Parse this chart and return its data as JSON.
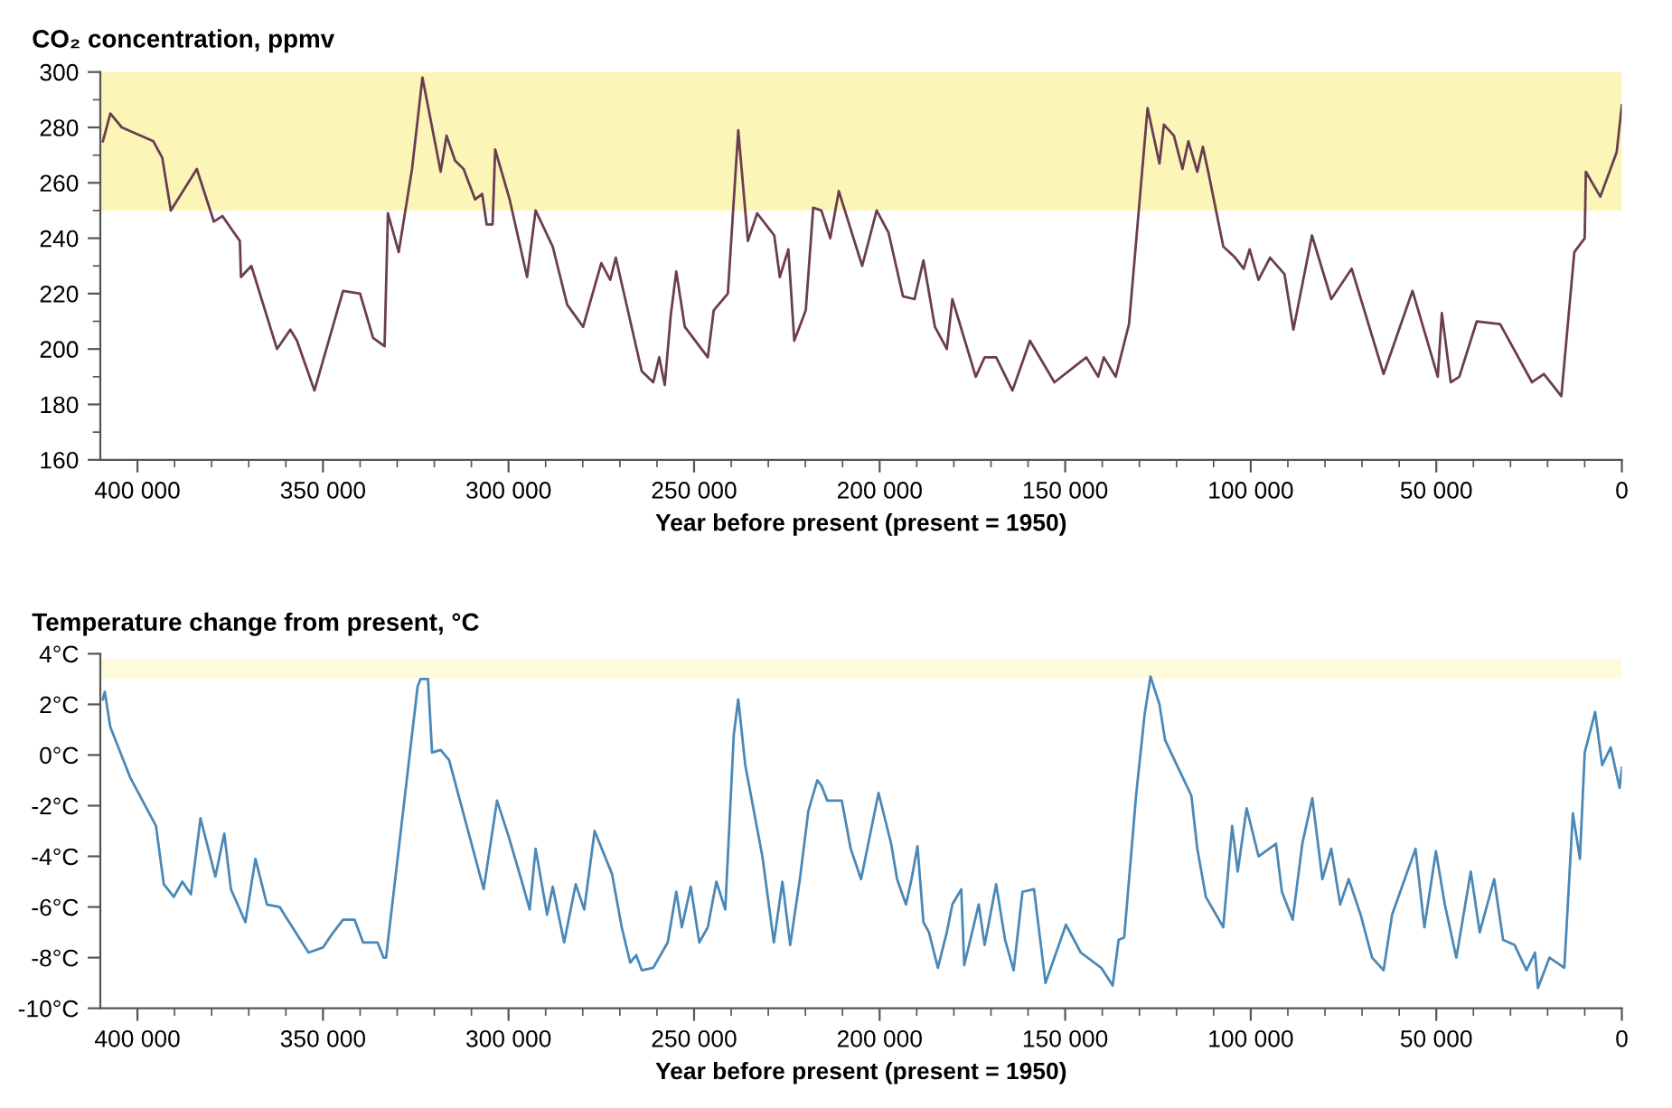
{
  "chart_data": [
    {
      "type": "line",
      "title": "CO₂ concentration, ppmv",
      "xlabel": "Year before present (present = 1950)",
      "xlim": [
        410000,
        0
      ],
      "ylim": [
        160,
        300
      ],
      "xticks": [
        {
          "value": 400000,
          "label": "400 000"
        },
        {
          "value": 390000,
          "label": null
        },
        {
          "value": 380000,
          "label": null
        },
        {
          "value": 370000,
          "label": null
        },
        {
          "value": 360000,
          "label": null
        },
        {
          "value": 350000,
          "label": "350 000"
        },
        {
          "value": 340000,
          "label": null
        },
        {
          "value": 330000,
          "label": null
        },
        {
          "value": 320000,
          "label": null
        },
        {
          "value": 310000,
          "label": null
        },
        {
          "value": 300000,
          "label": "300 000"
        },
        {
          "value": 290000,
          "label": null
        },
        {
          "value": 280000,
          "label": null
        },
        {
          "value": 270000,
          "label": null
        },
        {
          "value": 260000,
          "label": null
        },
        {
          "value": 250000,
          "label": "250 000"
        },
        {
          "value": 240000,
          "label": null
        },
        {
          "value": 230000,
          "label": null
        },
        {
          "value": 220000,
          "label": null
        },
        {
          "value": 210000,
          "label": null
        },
        {
          "value": 200000,
          "label": "200 000"
        },
        {
          "value": 190000,
          "label": null
        },
        {
          "value": 180000,
          "label": null
        },
        {
          "value": 170000,
          "label": null
        },
        {
          "value": 160000,
          "label": null
        },
        {
          "value": 150000,
          "label": "150 000"
        },
        {
          "value": 140000,
          "label": null
        },
        {
          "value": 130000,
          "label": null
        },
        {
          "value": 120000,
          "label": null
        },
        {
          "value": 110000,
          "label": null
        },
        {
          "value": 100000,
          "label": "100 000"
        },
        {
          "value": 90000,
          "label": null
        },
        {
          "value": 80000,
          "label": null
        },
        {
          "value": 70000,
          "label": null
        },
        {
          "value": 60000,
          "label": null
        },
        {
          "value": 50000,
          "label": "50 000"
        },
        {
          "value": 40000,
          "label": null
        },
        {
          "value": 30000,
          "label": null
        },
        {
          "value": 20000,
          "label": null
        },
        {
          "value": 10000,
          "label": null
        },
        0
      ],
      "yticks": [
        160,
        {
          "value": 170,
          "label": null
        },
        180,
        {
          "value": 190,
          "label": null
        },
        200,
        {
          "value": 210,
          "label": null
        },
        220,
        {
          "value": 230,
          "label": null
        },
        240,
        {
          "value": 250,
          "label": null
        },
        260,
        {
          "value": 270,
          "label": null
        },
        280,
        {
          "value": 290,
          "label": null
        },
        300
      ],
      "grid": false,
      "legend": false,
      "bands": [
        {
          "axis": "y",
          "from": 250,
          "to": 300,
          "color": "#fbf5b8"
        }
      ],
      "series": [
        {
          "color": "#6b3d50",
          "x": [
            409300,
            407300,
            404200,
            395700,
            393300,
            391000,
            384000,
            379400,
            377100,
            372400,
            372100,
            369300,
            362400,
            358800,
            357000,
            352300,
            344600,
            340000,
            336500,
            333400,
            332500,
            329600,
            326000,
            323200,
            319000,
            318300,
            316700,
            314400,
            312100,
            309000,
            307100,
            305900,
            304300,
            303600,
            299700,
            295000,
            292700,
            288100,
            284200,
            279900,
            275000,
            272600,
            271100,
            264100,
            261000,
            259400,
            257900,
            256300,
            254800,
            252500,
            246300,
            244700,
            240900,
            238100,
            235500,
            233000,
            228400,
            226900,
            224600,
            223000,
            219900,
            217900,
            215700,
            213300,
            211000,
            204700,
            200800,
            197600,
            193700,
            190600,
            188200,
            185100,
            181900,
            180400,
            174100,
            171700,
            168600,
            164200,
            159500,
            152900,
            144300,
            141100,
            139600,
            136400,
            132800,
            127800,
            124600,
            123400,
            120700,
            118400,
            116800,
            114400,
            112900,
            111300,
            107400,
            104200,
            101900,
            100300,
            97900,
            94800,
            90900,
            88500,
            83500,
            78300,
            72800,
            64200,
            56400,
            49600,
            48500,
            46100,
            43800,
            39100,
            32800,
            24200,
            21000,
            16300,
            12800,
            10000,
            9700,
            5800,
            1400,
            0
          ],
          "values": [
            275,
            285,
            280,
            275,
            269,
            250,
            265,
            246,
            248,
            239,
            226,
            230,
            200,
            207,
            203,
            185,
            221,
            220,
            204,
            201,
            249,
            235,
            265,
            298,
            269,
            264,
            277,
            268,
            265,
            254,
            256,
            245,
            245,
            272,
            254,
            226,
            250,
            237,
            216,
            208,
            231,
            225,
            233,
            192,
            188,
            197,
            187,
            212,
            228,
            208,
            197,
            214,
            220,
            279,
            239,
            249,
            241,
            226,
            236,
            203,
            214,
            251,
            250,
            240,
            257,
            230,
            250,
            242,
            219,
            218,
            232,
            208,
            200,
            218,
            190,
            197,
            197,
            185,
            203,
            188,
            197,
            190,
            197,
            190,
            209,
            287,
            267,
            281,
            277,
            265,
            275,
            264,
            273,
            263,
            237,
            233,
            229,
            236,
            225,
            233,
            227,
            207,
            241,
            218,
            229,
            191,
            221,
            190,
            213,
            188,
            190,
            210,
            209,
            188,
            191,
            183,
            235,
            240,
            264,
            255,
            271,
            288
          ]
        }
      ]
    },
    {
      "type": "line",
      "title": "Temperature change from present, °C",
      "xlabel": "Year before present (present = 1950)",
      "xlim": [
        410000,
        0
      ],
      "ylim": [
        -10,
        4
      ],
      "xticks": [
        {
          "value": 400000,
          "label": "400 000"
        },
        {
          "value": 390000,
          "label": null
        },
        {
          "value": 380000,
          "label": null
        },
        {
          "value": 370000,
          "label": null
        },
        {
          "value": 360000,
          "label": null
        },
        {
          "value": 350000,
          "label": "350 000"
        },
        {
          "value": 340000,
          "label": null
        },
        {
          "value": 330000,
          "label": null
        },
        {
          "value": 320000,
          "label": null
        },
        {
          "value": 310000,
          "label": null
        },
        {
          "value": 300000,
          "label": "300 000"
        },
        {
          "value": 290000,
          "label": null
        },
        {
          "value": 280000,
          "label": null
        },
        {
          "value": 270000,
          "label": null
        },
        {
          "value": 260000,
          "label": null
        },
        {
          "value": 250000,
          "label": "250 000"
        },
        {
          "value": 240000,
          "label": null
        },
        {
          "value": 230000,
          "label": null
        },
        {
          "value": 220000,
          "label": null
        },
        {
          "value": 210000,
          "label": null
        },
        {
          "value": 200000,
          "label": "200 000"
        },
        {
          "value": 190000,
          "label": null
        },
        {
          "value": 180000,
          "label": null
        },
        {
          "value": 170000,
          "label": null
        },
        {
          "value": 160000,
          "label": null
        },
        {
          "value": 150000,
          "label": "150 000"
        },
        {
          "value": 140000,
          "label": null
        },
        {
          "value": 130000,
          "label": null
        },
        {
          "value": 120000,
          "label": null
        },
        {
          "value": 110000,
          "label": null
        },
        {
          "value": 100000,
          "label": "100 000"
        },
        {
          "value": 90000,
          "label": null
        },
        {
          "value": 80000,
          "label": null
        },
        {
          "value": 70000,
          "label": null
        },
        {
          "value": 60000,
          "label": null
        },
        {
          "value": 50000,
          "label": "50 000"
        },
        {
          "value": 40000,
          "label": null
        },
        {
          "value": 30000,
          "label": null
        },
        {
          "value": 20000,
          "label": null
        },
        {
          "value": 10000,
          "label": null
        },
        0
      ],
      "yticks": [
        {
          "value": -10,
          "label": "-10°C"
        },
        {
          "value": -8,
          "label": "-8°C"
        },
        {
          "value": -6,
          "label": "-6°C"
        },
        {
          "value": -4,
          "label": "-4°C"
        },
        {
          "value": -2,
          "label": "-2°C"
        },
        {
          "value": 0,
          "label": "0°C"
        },
        {
          "value": 2,
          "label": "2°C"
        },
        {
          "value": 4,
          "label": "4°C"
        }
      ],
      "grid": false,
      "legend": false,
      "bands": [
        {
          "axis": "y",
          "from": 3,
          "to": 3.8,
          "color": "#fdfbdc"
        }
      ],
      "series": [
        {
          "color": "#4a88b8",
          "x": [
            409300,
            408800,
            407300,
            401900,
            395000,
            392900,
            390200,
            387900,
            385600,
            383000,
            379000,
            376600,
            374800,
            370900,
            368200,
            365100,
            361700,
            353900,
            350000,
            347700,
            344600,
            341500,
            339200,
            335300,
            333700,
            333000,
            324500,
            323700,
            321700,
            320600,
            318300,
            316000,
            306700,
            303100,
            300000,
            296600,
            294300,
            292700,
            289600,
            288100,
            285000,
            281900,
            279600,
            276800,
            272100,
            269500,
            267200,
            265600,
            264100,
            261000,
            257100,
            254800,
            253300,
            250900,
            248600,
            246300,
            244000,
            241600,
            239300,
            238100,
            236200,
            231600,
            228500,
            226200,
            224100,
            221500,
            219200,
            216800,
            215700,
            214100,
            210200,
            207800,
            205000,
            200300,
            196900,
            195300,
            192900,
            191400,
            189800,
            188200,
            186700,
            184300,
            181900,
            180400,
            178000,
            177200,
            173300,
            171700,
            168600,
            166200,
            163900,
            161500,
            158400,
            155300,
            149800,
            145800,
            140300,
            137200,
            135600,
            134100,
            130900,
            128600,
            127000,
            124600,
            123100,
            119900,
            116000,
            114400,
            112100,
            107400,
            105000,
            103500,
            101100,
            97900,
            93200,
            91600,
            88700,
            86100,
            83400,
            80700,
            78300,
            75900,
            73600,
            70400,
            67300,
            64200,
            61900,
            55600,
            53200,
            50100,
            47700,
            44600,
            40700,
            38300,
            34400,
            32000,
            28900,
            25700,
            23400,
            22600,
            19500,
            15500,
            13200,
            11300,
            10000,
            7200,
            5300,
            3000,
            600,
            0
          ],
          "values": [
            2.2,
            2.5,
            1.1,
            -0.9,
            -2.8,
            -5.1,
            -5.6,
            -5.0,
            -5.5,
            -2.5,
            -4.8,
            -3.1,
            -5.3,
            -6.6,
            -4.1,
            -5.9,
            -6.0,
            -7.8,
            -7.6,
            -7.1,
            -6.5,
            -6.5,
            -7.4,
            -7.4,
            -8.0,
            -8.0,
            2.7,
            3.0,
            3.0,
            0.1,
            0.2,
            -0.2,
            -5.3,
            -1.8,
            -3.2,
            -4.9,
            -6.1,
            -3.7,
            -6.3,
            -5.2,
            -7.4,
            -5.1,
            -6.1,
            -3.0,
            -4.7,
            -6.8,
            -8.2,
            -7.9,
            -8.5,
            -8.4,
            -7.4,
            -5.4,
            -6.8,
            -5.2,
            -7.4,
            -6.8,
            -5.0,
            -6.1,
            0.8,
            2.2,
            -0.4,
            -4.0,
            -7.4,
            -5.0,
            -7.5,
            -4.9,
            -2.2,
            -1.0,
            -1.2,
            -1.8,
            -1.8,
            -3.7,
            -4.9,
            -1.5,
            -3.5,
            -4.9,
            -5.9,
            -4.9,
            -3.6,
            -6.6,
            -7.0,
            -8.4,
            -7.0,
            -5.9,
            -5.3,
            -8.3,
            -5.9,
            -7.5,
            -5.1,
            -7.3,
            -8.5,
            -5.4,
            -5.3,
            -9.0,
            -6.7,
            -7.8,
            -8.4,
            -9.1,
            -7.3,
            -7.2,
            -1.6,
            1.6,
            3.1,
            2.0,
            0.6,
            -0.4,
            -1.6,
            -3.7,
            -5.6,
            -6.8,
            -2.8,
            -4.6,
            -2.1,
            -4.0,
            -3.5,
            -5.4,
            -6.5,
            -3.5,
            -1.7,
            -4.9,
            -3.7,
            -5.9,
            -4.9,
            -6.3,
            -8.0,
            -8.5,
            -6.3,
            -3.7,
            -6.8,
            -3.8,
            -5.9,
            -8.0,
            -4.6,
            -7.0,
            -4.9,
            -7.3,
            -7.5,
            -8.5,
            -7.8,
            -9.2,
            -8.0,
            -8.4,
            -2.3,
            -4.1,
            0.1,
            1.7,
            -0.4,
            0.3,
            -1.3,
            -0.5
          ]
        }
      ]
    }
  ]
}
